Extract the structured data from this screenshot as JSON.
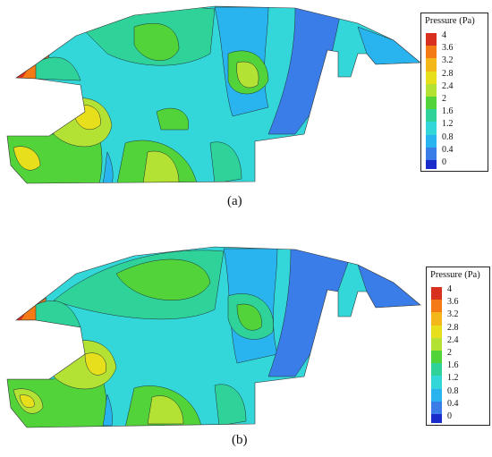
{
  "figure": {
    "panels": [
      {
        "caption": "(a)",
        "legend": {
          "title": "Pressure (Pa)",
          "ticks": [
            "4",
            "3.6",
            "3.2",
            "2.8",
            "2.4",
            "2",
            "1.6",
            "1.2",
            "0.8",
            "0.4",
            "0"
          ],
          "colors": [
            "#d7301f",
            "#f47a16",
            "#f3b71a",
            "#e8df1c",
            "#b3e234",
            "#52d33a",
            "#2fd39a",
            "#33d7d9",
            "#2ab4ef",
            "#3a7ce8",
            "#1a2cc9"
          ]
        }
      },
      {
        "caption": "(b)",
        "legend": {
          "title": "Pressure (Pa)",
          "ticks": [
            "4",
            "3.6",
            "3.2",
            "2.8",
            "2.4",
            "2",
            "1.6",
            "1.2",
            "0.8",
            "0.4",
            "0"
          ],
          "colors": [
            "#d7301f",
            "#f47a16",
            "#f3b71a",
            "#e8df1c",
            "#b3e234",
            "#52d33a",
            "#2fd39a",
            "#33d7d9",
            "#2ab4ef",
            "#3a7ce8",
            "#1a2cc9"
          ]
        }
      }
    ]
  }
}
